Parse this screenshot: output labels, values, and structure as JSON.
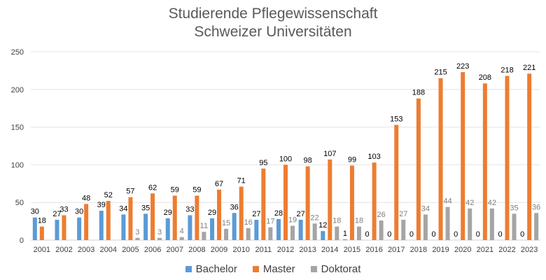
{
  "chart_data": {
    "type": "bar",
    "title": "Studierende Pflegewissenschaft",
    "subtitle": "Schweizer Universitäten",
    "categories": [
      "2001",
      "2002",
      "2003",
      "2004",
      "2005",
      "2006",
      "2007",
      "2008",
      "2009",
      "2010",
      "2011",
      "2012",
      "2013",
      "2014",
      "2015",
      "2016",
      "2017",
      "2018",
      "2019",
      "2020",
      "2021",
      "2022",
      "2023"
    ],
    "series": [
      {
        "name": "Bachelor",
        "color": "#5B9BD5",
        "values": [
          30,
          27,
          30,
          39,
          34,
          35,
          29,
          33,
          29,
          36,
          27,
          28,
          27,
          12,
          1,
          0,
          0,
          0,
          0,
          0,
          0,
          0,
          0
        ]
      },
      {
        "name": "Master",
        "color": "#ED7D31",
        "values": [
          18,
          33,
          48,
          52,
          57,
          62,
          59,
          59,
          67,
          71,
          95,
          100,
          98,
          107,
          99,
          103,
          153,
          188,
          215,
          223,
          208,
          218,
          221
        ]
      },
      {
        "name": "Doktorat",
        "color": "#A5A5A5",
        "values": [
          null,
          null,
          null,
          null,
          3,
          3,
          4,
          11,
          15,
          16,
          17,
          19,
          22,
          18,
          18,
          26,
          27,
          34,
          44,
          42,
          42,
          35,
          36
        ]
      }
    ],
    "ylim": [
      0,
      250
    ],
    "yticks": [
      0,
      50,
      100,
      150,
      200,
      250
    ],
    "grid": true,
    "legend_position": "bottom"
  }
}
